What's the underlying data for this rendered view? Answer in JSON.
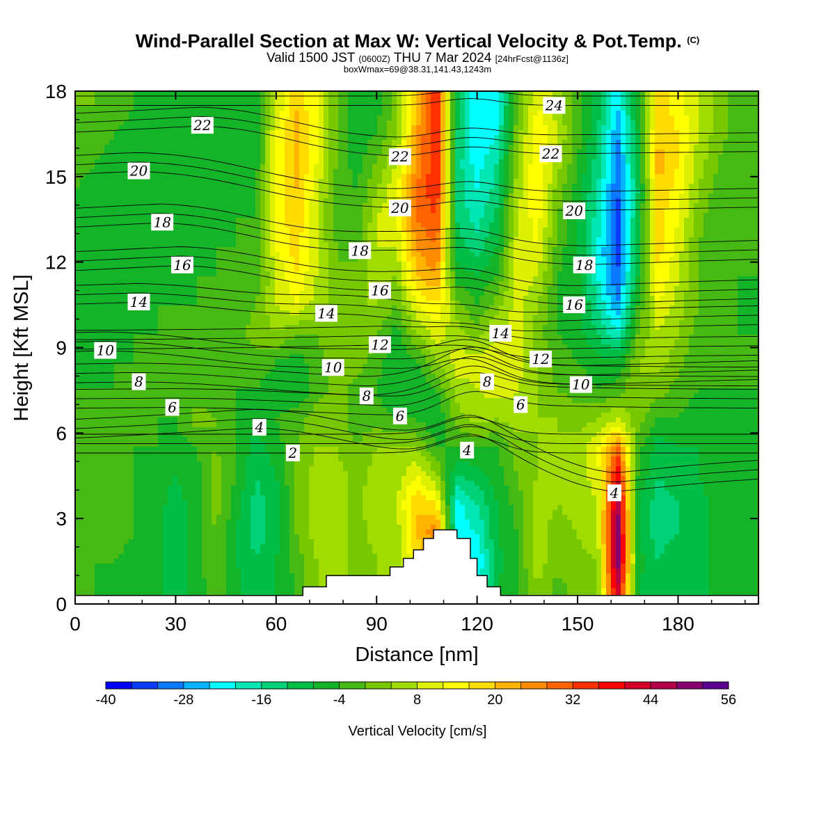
{
  "header": {
    "title": "Wind-Parallel Section at Max W: Vertical Velocity & Pot.Temp.",
    "copyright": "(C)",
    "valid_main": "Valid 1500 JST",
    "valid_z": "(0600Z)",
    "valid_date": "THU 7 Mar 2024",
    "valid_fcst": "[24hrFcst@1136z]",
    "box_info": "boxWmax=69@38.31,141.43,1243m"
  },
  "chart_data": {
    "type": "heatmap",
    "xlabel": "Distance [nm]",
    "ylabel": "Height [Kft MSL]",
    "xlim": [
      0,
      204
    ],
    "ylim": [
      0,
      18
    ],
    "x_ticks": [
      0,
      30,
      60,
      90,
      120,
      150,
      180
    ],
    "y_ticks": [
      0,
      3,
      6,
      9,
      12,
      15,
      18
    ],
    "colorbar": {
      "label": "Vertical Velocity [cm/s]",
      "range": [
        -40,
        56
      ],
      "step": 4,
      "tick_labels": [
        -40,
        -28,
        -16,
        -4,
        8,
        20,
        32,
        44,
        56
      ],
      "colors": [
        "#0000ff",
        "#0a3cff",
        "#0a78ff",
        "#00b4ff",
        "#00ffff",
        "#00e6b4",
        "#00d278",
        "#00be46",
        "#14b428",
        "#46b914",
        "#78c800",
        "#a0dc00",
        "#dcf000",
        "#ffff00",
        "#ffdc00",
        "#ffb400",
        "#ff8c00",
        "#ff6400",
        "#ff3200",
        "#ff0000",
        "#d20028",
        "#b4004b",
        "#87006e",
        "#5a0091"
      ]
    },
    "w_field": {
      "columns_x": [
        0,
        6,
        12,
        18,
        24,
        30,
        36,
        42,
        48,
        54,
        60,
        66,
        72,
        78,
        84,
        90,
        96,
        102,
        108,
        114,
        120,
        126,
        132,
        138,
        144,
        150,
        156,
        162,
        168,
        174,
        180,
        186,
        192,
        198,
        204
      ],
      "rows_z": [
        0.5,
        1.5,
        2.5,
        3.5,
        4.5,
        5.5,
        6.5,
        7.5,
        8.5,
        9.5,
        10.5,
        11.5,
        12.5,
        13.5,
        14.5,
        15.5,
        16.5,
        17.5
      ],
      "values": [
        [
          -4,
          -4,
          -6,
          -8,
          -6,
          -12,
          -6,
          -2,
          -6,
          -12,
          -8,
          -4,
          4,
          8,
          0,
          4,
          4,
          12,
          16,
          -26,
          -22,
          -8,
          -4,
          4,
          -2,
          2,
          4,
          44,
          -8,
          -12,
          -8,
          -10,
          -6,
          -6,
          -4
        ],
        [
          -4,
          -4,
          -4,
          -6,
          -6,
          -12,
          -6,
          0,
          -8,
          -12,
          -8,
          -2,
          4,
          8,
          0,
          4,
          4,
          16,
          24,
          -24,
          -24,
          -10,
          -4,
          6,
          2,
          2,
          4,
          52,
          -6,
          -12,
          -8,
          -10,
          -6,
          -6,
          -4
        ],
        [
          -4,
          -4,
          -2,
          -4,
          -6,
          -12,
          -6,
          0,
          -8,
          -14,
          -10,
          0,
          6,
          8,
          2,
          6,
          6,
          20,
          28,
          -22,
          -20,
          -8,
          -4,
          6,
          2,
          4,
          8,
          52,
          -8,
          -14,
          -12,
          -10,
          -6,
          -6,
          -4
        ],
        [
          -2,
          -2,
          -2,
          -4,
          -6,
          -10,
          -6,
          2,
          -6,
          -14,
          -10,
          0,
          6,
          8,
          2,
          8,
          8,
          20,
          16,
          -22,
          -16,
          -8,
          -2,
          6,
          4,
          6,
          8,
          48,
          -8,
          -14,
          -12,
          -10,
          -6,
          -6,
          -4
        ],
        [
          -2,
          -2,
          -2,
          -4,
          -6,
          -8,
          -6,
          2,
          -4,
          -12,
          -8,
          0,
          6,
          6,
          2,
          6,
          6,
          12,
          4,
          -12,
          -10,
          -6,
          0,
          4,
          4,
          6,
          10,
          40,
          -4,
          -12,
          -10,
          -8,
          -6,
          -6,
          -4
        ],
        [
          -2,
          -2,
          -2,
          -4,
          -4,
          -6,
          -4,
          0,
          -4,
          -10,
          -6,
          0,
          4,
          4,
          0,
          4,
          4,
          4,
          -4,
          -4,
          -4,
          -4,
          2,
          4,
          4,
          6,
          12,
          28,
          -2,
          -10,
          -8,
          -8,
          -6,
          -8,
          -4
        ],
        [
          -2,
          -2,
          -4,
          -4,
          -4,
          -4,
          2,
          0,
          -4,
          -6,
          -4,
          -2,
          2,
          2,
          -2,
          -2,
          -4,
          -4,
          -8,
          2,
          6,
          4,
          6,
          4,
          4,
          2,
          4,
          8,
          2,
          -4,
          -4,
          -6,
          -6,
          -6,
          -4
        ],
        [
          -4,
          -4,
          -4,
          -4,
          -4,
          -4,
          -2,
          -2,
          -4,
          -4,
          -6,
          -8,
          -2,
          2,
          -2,
          -4,
          -8,
          -8,
          -4,
          6,
          8,
          10,
          8,
          4,
          0,
          -2,
          -4,
          -2,
          4,
          2,
          -2,
          -4,
          -4,
          -4,
          -4
        ],
        [
          -6,
          -6,
          -4,
          -4,
          -4,
          -4,
          -4,
          -2,
          -2,
          -2,
          -4,
          -6,
          -2,
          2,
          2,
          -2,
          -8,
          -4,
          4,
          10,
          10,
          12,
          10,
          4,
          -2,
          -4,
          -6,
          -8,
          4,
          6,
          2,
          -4,
          -4,
          -4,
          -4
        ],
        [
          -6,
          -6,
          -6,
          -4,
          -4,
          -4,
          -4,
          -4,
          -2,
          2,
          4,
          0,
          0,
          4,
          4,
          0,
          -6,
          4,
          10,
          6,
          2,
          8,
          10,
          2,
          -4,
          -6,
          -12,
          -20,
          0,
          8,
          4,
          -2,
          -4,
          -4,
          -4
        ],
        [
          -8,
          -6,
          -6,
          -6,
          -4,
          -4,
          -4,
          -4,
          -2,
          0,
          8,
          12,
          6,
          2,
          4,
          4,
          0,
          12,
          16,
          2,
          -4,
          2,
          10,
          4,
          -4,
          -6,
          -16,
          -28,
          -4,
          12,
          6,
          0,
          -2,
          -4,
          -6
        ],
        [
          -8,
          -8,
          -6,
          -6,
          -6,
          -6,
          -4,
          -4,
          -2,
          -2,
          8,
          16,
          8,
          0,
          2,
          6,
          4,
          20,
          24,
          -6,
          -8,
          -4,
          10,
          8,
          -4,
          -6,
          -20,
          -32,
          -8,
          16,
          8,
          0,
          -2,
          -4,
          -4
        ],
        [
          -6,
          -8,
          -8,
          -6,
          -6,
          -6,
          -6,
          -4,
          -4,
          -4,
          12,
          18,
          8,
          0,
          -2,
          8,
          8,
          24,
          28,
          -10,
          -14,
          -8,
          10,
          12,
          -2,
          -8,
          -20,
          -34,
          -10,
          18,
          10,
          0,
          -4,
          -4,
          -4
        ],
        [
          -6,
          -8,
          -8,
          -6,
          -6,
          -8,
          -8,
          -6,
          -4,
          -4,
          12,
          20,
          8,
          -2,
          -4,
          8,
          12,
          28,
          32,
          -12,
          -18,
          -10,
          8,
          14,
          0,
          -8,
          -18,
          -34,
          -10,
          18,
          12,
          2,
          -4,
          -4,
          -4
        ],
        [
          -4,
          -6,
          -8,
          -8,
          -8,
          -8,
          -8,
          -6,
          -6,
          -4,
          12,
          20,
          10,
          -2,
          -4,
          4,
          12,
          28,
          36,
          -14,
          -20,
          -14,
          6,
          16,
          2,
          -6,
          -16,
          -32,
          -12,
          20,
          14,
          4,
          -2,
          -4,
          -4
        ],
        [
          -2,
          -4,
          -6,
          -8,
          -8,
          -8,
          -8,
          -8,
          -6,
          -6,
          12,
          22,
          12,
          0,
          -6,
          0,
          8,
          26,
          36,
          -14,
          -22,
          -16,
          4,
          16,
          6,
          -4,
          -14,
          -30,
          -10,
          22,
          16,
          6,
          0,
          -4,
          -4
        ],
        [
          0,
          -2,
          -4,
          -6,
          -8,
          -8,
          -8,
          -8,
          -8,
          -6,
          12,
          22,
          12,
          0,
          -6,
          -4,
          4,
          24,
          36,
          -12,
          -24,
          -20,
          2,
          16,
          8,
          -2,
          -12,
          -28,
          -8,
          20,
          16,
          8,
          2,
          -2,
          -4
        ],
        [
          0,
          0,
          -2,
          -4,
          -6,
          -8,
          -8,
          -8,
          -8,
          -6,
          8,
          20,
          12,
          0,
          -8,
          -6,
          2,
          20,
          36,
          -10,
          -24,
          -22,
          0,
          12,
          6,
          -2,
          -10,
          -24,
          -6,
          18,
          14,
          8,
          2,
          -2,
          -4
        ]
      ]
    },
    "theta_levels": [
      2,
      4,
      6,
      8,
      10,
      12,
      14,
      16,
      18,
      20,
      22,
      24
    ],
    "contour_labels": [
      {
        "text": "22",
        "x": 38,
        "y": 16.8
      },
      {
        "text": "20",
        "x": 19,
        "y": 15.2
      },
      {
        "text": "18",
        "x": 26,
        "y": 13.4
      },
      {
        "text": "16",
        "x": 32,
        "y": 11.9
      },
      {
        "text": "14",
        "x": 19,
        "y": 10.6
      },
      {
        "text": "10",
        "x": 9,
        "y": 8.9
      },
      {
        "text": "8",
        "x": 19,
        "y": 7.8
      },
      {
        "text": "6",
        "x": 29,
        "y": 6.9
      },
      {
        "text": "4",
        "x": 55,
        "y": 6.2
      },
      {
        "text": "2",
        "x": 65,
        "y": 5.3
      },
      {
        "text": "22",
        "x": 97,
        "y": 15.7
      },
      {
        "text": "20",
        "x": 97,
        "y": 13.9
      },
      {
        "text": "18",
        "x": 85,
        "y": 12.4
      },
      {
        "text": "16",
        "x": 91,
        "y": 11.0
      },
      {
        "text": "14",
        "x": 75,
        "y": 10.2
      },
      {
        "text": "12",
        "x": 91,
        "y": 9.1
      },
      {
        "text": "10",
        "x": 77,
        "y": 8.3
      },
      {
        "text": "8",
        "x": 87,
        "y": 7.3
      },
      {
        "text": "6",
        "x": 97,
        "y": 6.6
      },
      {
        "text": "4",
        "x": 117,
        "y": 5.4
      },
      {
        "text": "24",
        "x": 143,
        "y": 17.5
      },
      {
        "text": "22",
        "x": 142,
        "y": 15.8
      },
      {
        "text": "20",
        "x": 149,
        "y": 13.8
      },
      {
        "text": "18",
        "x": 152,
        "y": 11.9
      },
      {
        "text": "16",
        "x": 149,
        "y": 10.5
      },
      {
        "text": "14",
        "x": 127,
        "y": 9.5
      },
      {
        "text": "12",
        "x": 139,
        "y": 8.6
      },
      {
        "text": "10",
        "x": 151,
        "y": 7.7
      },
      {
        "text": "8",
        "x": 123,
        "y": 7.8
      },
      {
        "text": "6",
        "x": 133,
        "y": 7.0
      },
      {
        "text": "4",
        "x": 161,
        "y": 3.9
      }
    ],
    "terrain": [
      {
        "x": 0,
        "z": 0.3
      },
      {
        "x": 68,
        "z": 0.3
      },
      {
        "x": 68,
        "z": 0.6
      },
      {
        "x": 75,
        "z": 0.6
      },
      {
        "x": 75,
        "z": 1.0
      },
      {
        "x": 94,
        "z": 1.0
      },
      {
        "x": 94,
        "z": 1.3
      },
      {
        "x": 98,
        "z": 1.3
      },
      {
        "x": 98,
        "z": 1.6
      },
      {
        "x": 101,
        "z": 1.6
      },
      {
        "x": 101,
        "z": 1.9
      },
      {
        "x": 104,
        "z": 1.9
      },
      {
        "x": 104,
        "z": 2.3
      },
      {
        "x": 107,
        "z": 2.3
      },
      {
        "x": 107,
        "z": 2.6
      },
      {
        "x": 114,
        "z": 2.6
      },
      {
        "x": 114,
        "z": 2.3
      },
      {
        "x": 118,
        "z": 2.3
      },
      {
        "x": 118,
        "z": 1.6
      },
      {
        "x": 120,
        "z": 1.6
      },
      {
        "x": 120,
        "z": 1.0
      },
      {
        "x": 123,
        "z": 1.0
      },
      {
        "x": 123,
        "z": 0.6
      },
      {
        "x": 127,
        "z": 0.6
      },
      {
        "x": 127,
        "z": 0.3
      },
      {
        "x": 204,
        "z": 0.3
      }
    ]
  }
}
